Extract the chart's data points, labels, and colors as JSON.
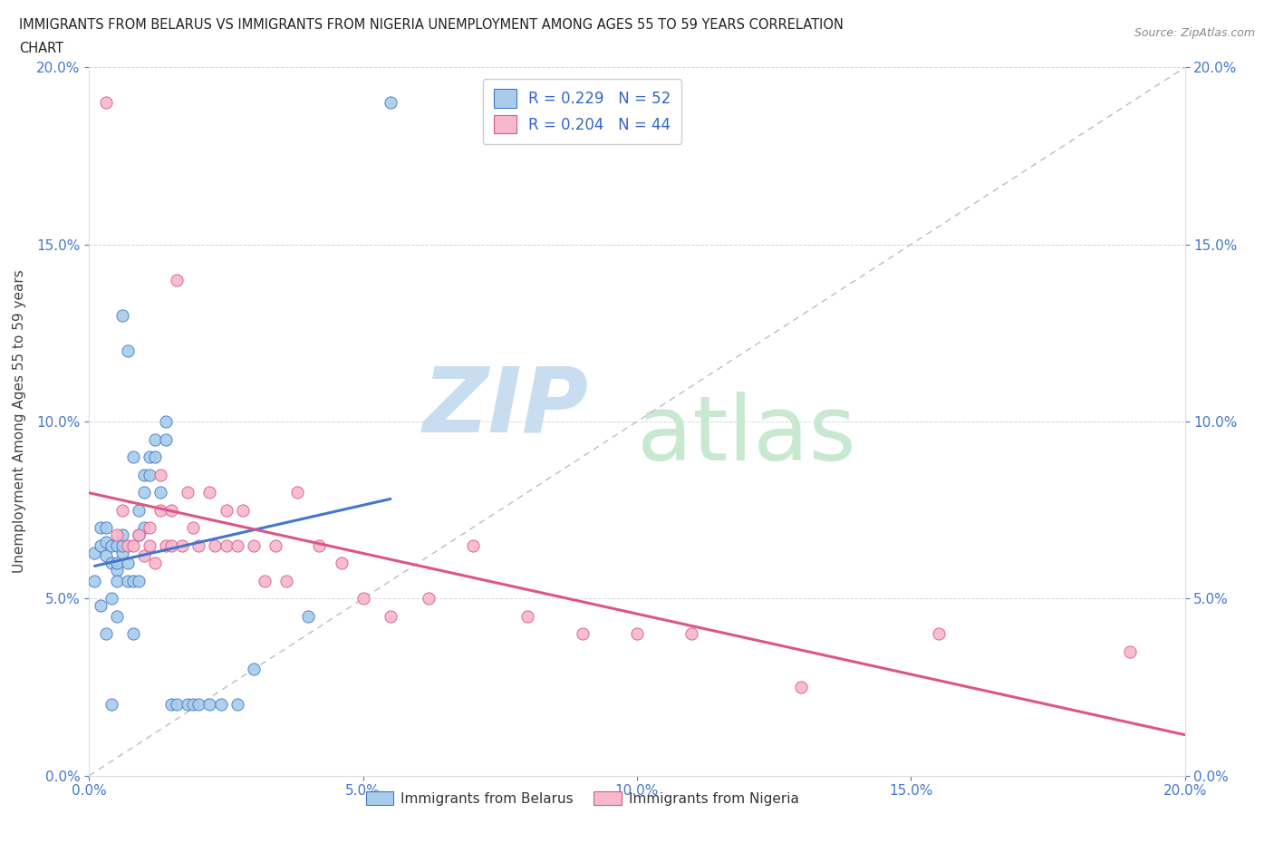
{
  "title_line1": "IMMIGRANTS FROM BELARUS VS IMMIGRANTS FROM NIGERIA UNEMPLOYMENT AMONG AGES 55 TO 59 YEARS CORRELATION",
  "title_line2": "CHART",
  "source": "Source: ZipAtlas.com",
  "ylabel": "Unemployment Among Ages 55 to 59 years",
  "r_belarus": 0.229,
  "n_belarus": 52,
  "r_nigeria": 0.204,
  "n_nigeria": 44,
  "color_belarus": "#a8ccea",
  "color_nigeria": "#f5b8cc",
  "trend_color_belarus": "#4477cc",
  "trend_color_nigeria": "#dd5588",
  "background_color": "#ffffff",
  "watermark_zip": "ZIP",
  "watermark_atlas": "atlas",
  "watermark_color_zip": "#c8ddf0",
  "watermark_color_atlas": "#c8e8d0",
  "belarus_x": [
    0.001,
    0.001,
    0.002,
    0.002,
    0.002,
    0.003,
    0.003,
    0.003,
    0.003,
    0.004,
    0.004,
    0.004,
    0.004,
    0.005,
    0.005,
    0.005,
    0.005,
    0.005,
    0.006,
    0.006,
    0.006,
    0.006,
    0.007,
    0.007,
    0.007,
    0.008,
    0.008,
    0.008,
    0.009,
    0.009,
    0.009,
    0.01,
    0.01,
    0.01,
    0.011,
    0.011,
    0.012,
    0.012,
    0.013,
    0.014,
    0.014,
    0.015,
    0.016,
    0.018,
    0.019,
    0.02,
    0.022,
    0.024,
    0.027,
    0.03,
    0.04,
    0.055
  ],
  "belarus_y": [
    0.063,
    0.055,
    0.065,
    0.07,
    0.048,
    0.062,
    0.066,
    0.07,
    0.04,
    0.06,
    0.065,
    0.05,
    0.02,
    0.058,
    0.065,
    0.045,
    0.055,
    0.06,
    0.063,
    0.065,
    0.068,
    0.13,
    0.055,
    0.06,
    0.12,
    0.04,
    0.055,
    0.09,
    0.055,
    0.068,
    0.075,
    0.07,
    0.08,
    0.085,
    0.085,
    0.09,
    0.09,
    0.095,
    0.08,
    0.095,
    0.1,
    0.02,
    0.02,
    0.02,
    0.02,
    0.02,
    0.02,
    0.02,
    0.02,
    0.03,
    0.045,
    0.19
  ],
  "nigeria_x": [
    0.003,
    0.005,
    0.006,
    0.007,
    0.008,
    0.009,
    0.01,
    0.011,
    0.011,
    0.012,
    0.013,
    0.013,
    0.014,
    0.015,
    0.015,
    0.016,
    0.017,
    0.018,
    0.019,
    0.02,
    0.022,
    0.023,
    0.025,
    0.025,
    0.027,
    0.028,
    0.03,
    0.032,
    0.034,
    0.036,
    0.038,
    0.042,
    0.046,
    0.05,
    0.055,
    0.062,
    0.07,
    0.08,
    0.09,
    0.1,
    0.11,
    0.13,
    0.155,
    0.19
  ],
  "nigeria_y": [
    0.19,
    0.068,
    0.075,
    0.065,
    0.065,
    0.068,
    0.062,
    0.065,
    0.07,
    0.06,
    0.085,
    0.075,
    0.065,
    0.065,
    0.075,
    0.14,
    0.065,
    0.08,
    0.07,
    0.065,
    0.08,
    0.065,
    0.075,
    0.065,
    0.065,
    0.075,
    0.065,
    0.055,
    0.065,
    0.055,
    0.08,
    0.065,
    0.06,
    0.05,
    0.045,
    0.05,
    0.065,
    0.045,
    0.04,
    0.04,
    0.04,
    0.025,
    0.04,
    0.035
  ],
  "xlim": [
    0,
    0.2
  ],
  "ylim": [
    0,
    0.2
  ],
  "xticks": [
    0.0,
    0.05,
    0.1,
    0.15,
    0.2
  ],
  "yticks": [
    0.0,
    0.05,
    0.1,
    0.15,
    0.2
  ]
}
